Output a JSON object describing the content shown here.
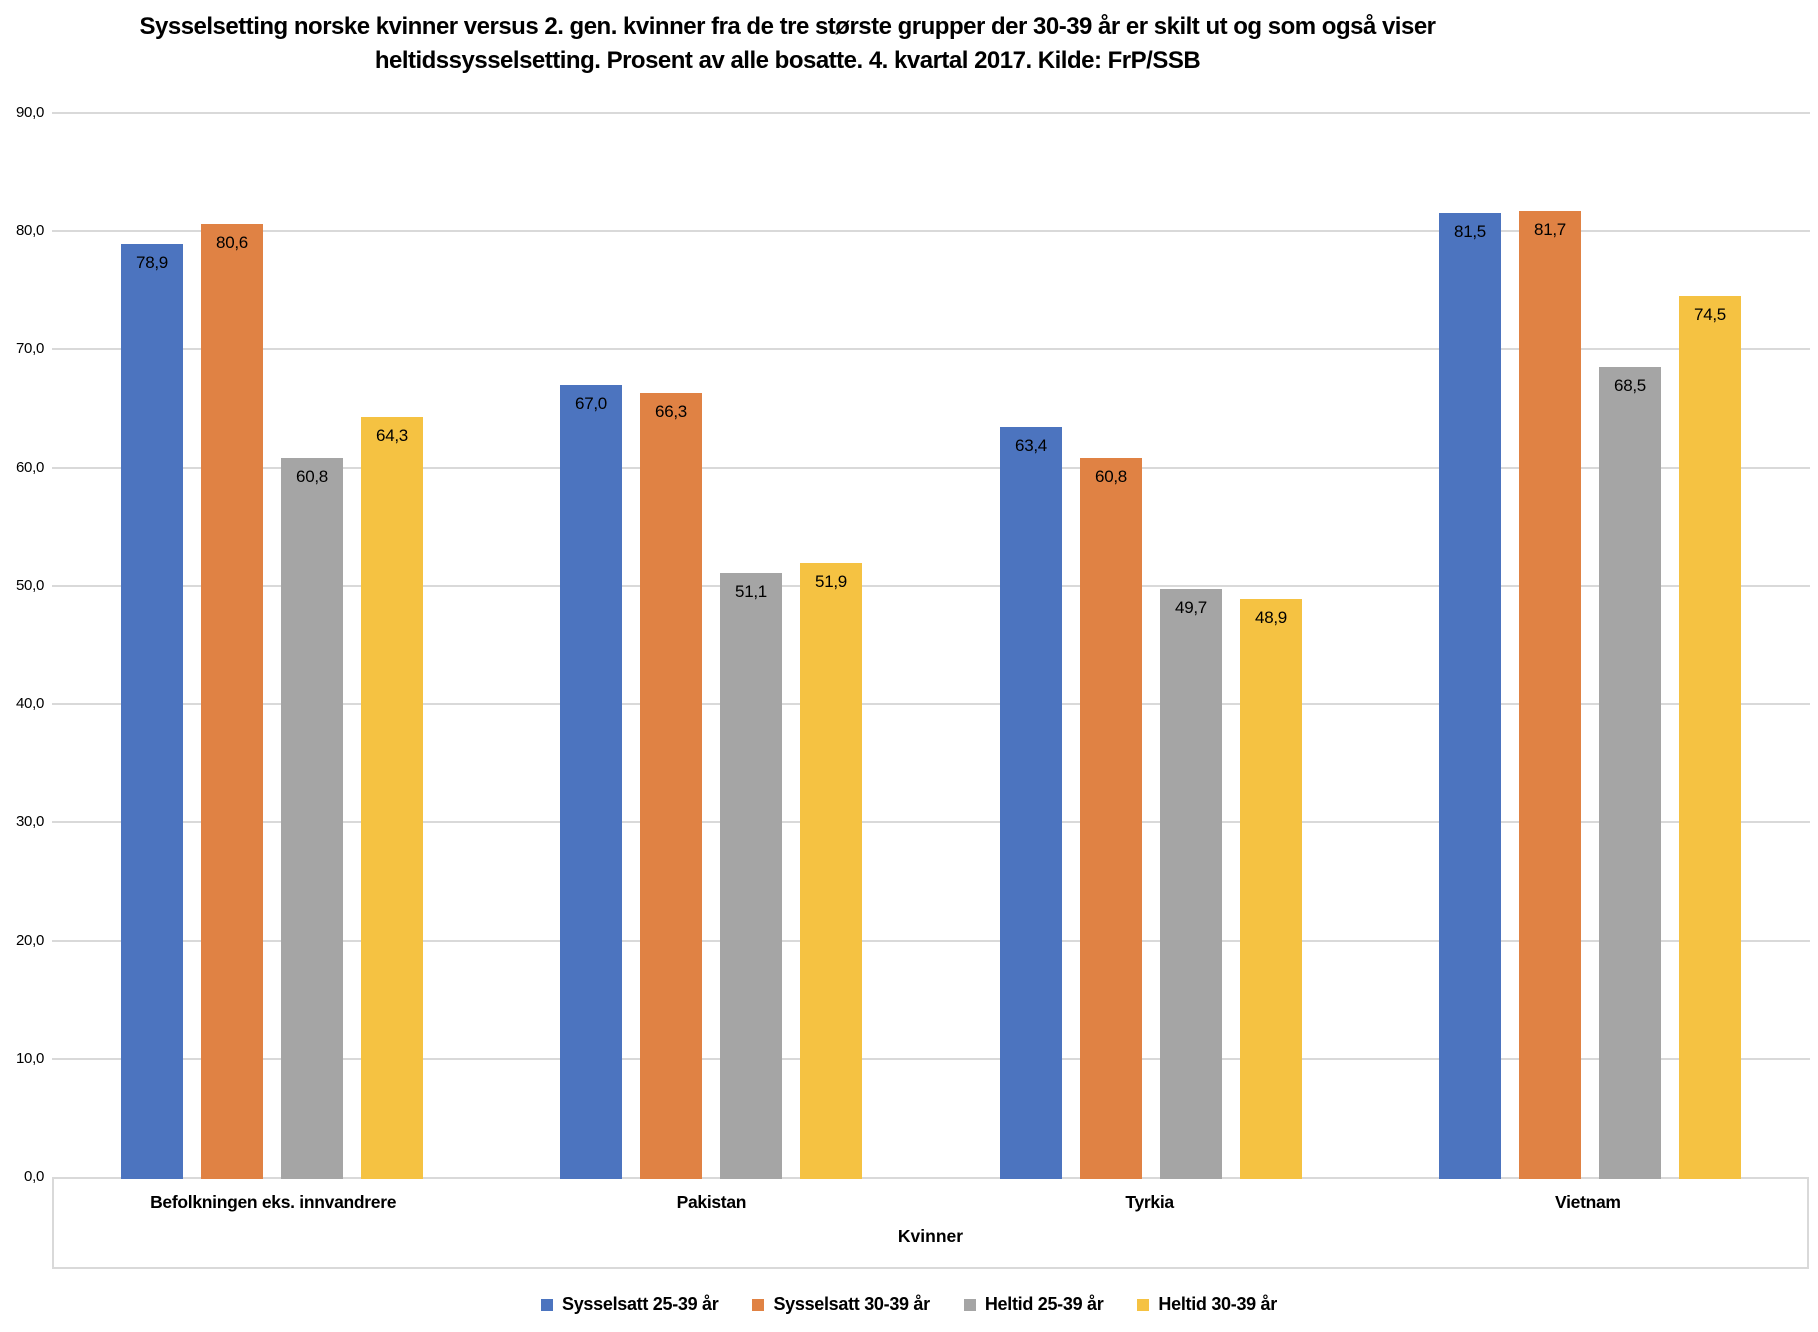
{
  "title": "Sysselsetting norske kvinner versus 2. gen. kvinner fra de tre største grupper der 30-39 år er skilt ut og som også viser heltidssysselsetting. Prosent av alle bosatte. 4. kvartal 2017. Kilde: FrP/SSB",
  "colors": {
    "blue": "#4C74BF",
    "orange": "#E08244",
    "gray": "#A5A5A5",
    "yellow": "#F5C242",
    "gridline": "#D9D9D9",
    "text": "#000000"
  },
  "chart_data": {
    "type": "bar",
    "categories": [
      "Befolkningen eks. innvandrere",
      "Pakistan",
      "Tyrkia",
      "Vietnam"
    ],
    "series": [
      {
        "name": "Sysselsatt 25-39 år",
        "color": "#4C74BF",
        "values": [
          78.9,
          67.0,
          63.4,
          81.5
        ],
        "labels": [
          "78,9",
          "67,0",
          "63,4",
          "81,5"
        ]
      },
      {
        "name": "Sysselsatt 30-39 år",
        "color": "#E08244",
        "values": [
          80.6,
          66.3,
          60.8,
          81.7
        ],
        "labels": [
          "80,6",
          "66,3",
          "60,8",
          "81,7"
        ]
      },
      {
        "name": "Heltid 25-39 år",
        "color": "#A5A5A5",
        "values": [
          60.8,
          51.1,
          49.7,
          68.5
        ],
        "labels": [
          "60,8",
          "51,1",
          "49,7",
          "68,5"
        ]
      },
      {
        "name": "Heltid 30-39 år",
        "color": "#F5C242",
        "values": [
          64.3,
          51.9,
          48.9,
          74.5
        ],
        "labels": [
          "64,3",
          "51,9",
          "48,9",
          "74,5"
        ]
      }
    ],
    "xlabel": "Kvinner",
    "ylabel": "",
    "ylim": [
      0,
      90
    ],
    "ytick_values": [
      0,
      10,
      20,
      30,
      40,
      50,
      60,
      70,
      80,
      90
    ],
    "ytick_labels": [
      "0,0",
      "10,0",
      "20,0",
      "30,0",
      "40,0",
      "50,0",
      "60,0",
      "70,0",
      "80,0",
      "90,0"
    ],
    "grid": true,
    "legend_position": "bottom",
    "value_labels_position": "inside-top"
  }
}
